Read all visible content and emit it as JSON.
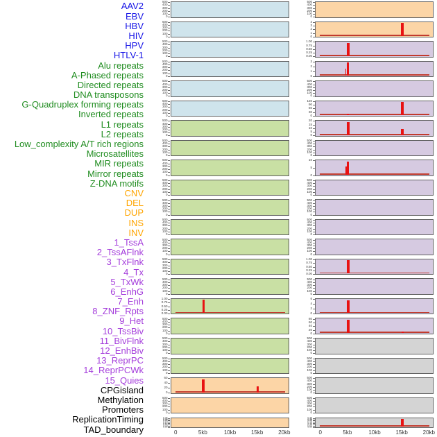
{
  "chart_data": {
    "type": "small_multiple_genomic_tracks",
    "description": "Two columns of genomic signal track panels over a 0-20kb window; red spikes mark feature enrichment at 5kb and 15kb.",
    "x_axis": {
      "tick_labels": [
        "0",
        "5kb",
        "10kb",
        "15kb",
        "20kb"
      ],
      "tick_kb": [
        0,
        5,
        10,
        15,
        20
      ],
      "unit": "kb",
      "range_kb": [
        0,
        20
      ]
    },
    "palette": {
      "panel_fills": {
        "blue": "#CFE4EC",
        "green": "#C9E0A4",
        "orange": "#FCD5A6",
        "purple": "#D6CAE1",
        "gray": "#D4D4D4"
      },
      "label_colors": {
        "blue": "#1412E6",
        "green": "#1F8C1F",
        "orange": "#FFA500",
        "purple": "#A43DDB",
        "black": "#000000"
      },
      "spike_red": "#E81212",
      "baseline_red": "#C23B2E",
      "panel_border": "#5F5F5F",
      "tick_text": "#3A3A3A"
    },
    "columns": [
      {
        "side": "left",
        "rows": [
          {
            "label": "AAV2",
            "label_color": "blue",
            "fill": "blue",
            "y_ticks": [
              "500",
              "400",
              "300",
              "200",
              "100",
              "0"
            ],
            "spikes": [],
            "baseline": false
          },
          {
            "label": "EBV",
            "label_color": "blue",
            "fill": "blue",
            "y_ticks": [
              "500",
              "400",
              "300",
              "200",
              "100",
              "0"
            ],
            "spikes": [],
            "baseline": false
          },
          {
            "label": "HBV",
            "label_color": "blue",
            "fill": "blue",
            "y_ticks": [
              "500",
              "400",
              "300",
              "200",
              "100",
              "0"
            ],
            "spikes": [],
            "baseline": false
          },
          {
            "label": "HIV",
            "label_color": "blue",
            "fill": "blue",
            "y_ticks": [
              "500",
              "400",
              "300",
              "200",
              "100",
              "0"
            ],
            "spikes": [],
            "baseline": false
          },
          {
            "label": "HPV",
            "label_color": "blue",
            "fill": "blue",
            "y_ticks": [
              "500",
              "400",
              "300",
              "200",
              "100",
              "0"
            ],
            "spikes": [],
            "baseline": false
          },
          {
            "label": "HTLV-1",
            "label_color": "blue",
            "fill": "blue",
            "y_ticks": [
              "500",
              "400",
              "300",
              "200",
              "100",
              "0"
            ],
            "spikes": [],
            "baseline": false
          },
          {
            "label": "Alu repeats",
            "label_color": "green",
            "fill": "green",
            "y_ticks": [
              "500",
              "400",
              "300",
              "200",
              "100",
              "0"
            ],
            "spikes": [],
            "baseline": false
          },
          {
            "label": "A-Phased repeats",
            "label_color": "green",
            "fill": "green",
            "y_ticks": [
              "500",
              "400",
              "300",
              "200",
              "100",
              "0"
            ],
            "spikes": [],
            "baseline": false
          },
          {
            "label": "Directed repeats",
            "label_color": "green",
            "fill": "green",
            "y_ticks": [
              "500",
              "400",
              "300",
              "200",
              "100",
              "0"
            ],
            "spikes": [],
            "baseline": false
          },
          {
            "label": "DNA transposons",
            "label_color": "green",
            "fill": "green",
            "y_ticks": [
              "500",
              "400",
              "300",
              "200",
              "100",
              "0"
            ],
            "spikes": [],
            "baseline": false
          },
          {
            "label": "G-Quadruplex forming repeats",
            "label_color": "green",
            "fill": "green",
            "y_ticks": [
              "500",
              "400",
              "300",
              "200",
              "100",
              "0"
            ],
            "spikes": [],
            "baseline": false
          },
          {
            "label": "Inverted repeats",
            "label_color": "green",
            "fill": "green",
            "y_ticks": [
              "500",
              "400",
              "300",
              "200",
              "100",
              "0"
            ],
            "spikes": [],
            "baseline": false
          },
          {
            "label": "L1 repeats",
            "label_color": "green",
            "fill": "green",
            "y_ticks": [
              "500",
              "400",
              "300",
              "200",
              "100",
              "0"
            ],
            "spikes": [],
            "baseline": false
          },
          {
            "label": "L2 repeats",
            "label_color": "green",
            "fill": "green",
            "y_ticks": [
              "500",
              "400",
              "300",
              "200",
              "100",
              "0"
            ],
            "spikes": [],
            "baseline": false
          },
          {
            "label": "Low_complexity A/T rich regions",
            "label_color": "green",
            "fill": "green",
            "y_ticks": [
              "500",
              "400",
              "300",
              "200",
              "100",
              "0"
            ],
            "spikes": [],
            "baseline": false
          },
          {
            "label": "Microsatellites",
            "label_color": "green",
            "fill": "green",
            "y_ticks": [
              "1.00",
              "0.75",
              "0.50",
              "0.25",
              "0.00"
            ],
            "spikes": [
              {
                "x_kb": 5,
                "h": 0.98,
                "w": 2.5
              }
            ],
            "baseline": true
          },
          {
            "label": "MIR repeats",
            "label_color": "green",
            "fill": "green",
            "y_ticks": [
              "500",
              "400",
              "300",
              "200",
              "100",
              "0"
            ],
            "spikes": [],
            "baseline": false
          },
          {
            "label": "Mirror repeats",
            "label_color": "green",
            "fill": "green",
            "y_ticks": [
              "500",
              "400",
              "300",
              "200",
              "100",
              "0"
            ],
            "spikes": [],
            "baseline": false
          },
          {
            "label": "Z-DNA motifs",
            "label_color": "green",
            "fill": "green",
            "y_ticks": [
              "500",
              "400",
              "300",
              "200",
              "100",
              "0"
            ],
            "spikes": [],
            "baseline": false
          },
          {
            "label": "CNV",
            "label_color": "orange",
            "fill": "orange",
            "y_ticks": [
              "60",
              "40",
              "20",
              "0"
            ],
            "spikes": [
              {
                "x_kb": 5,
                "h": 0.95,
                "w": 4
              },
              {
                "x_kb": 15,
                "h": 0.42,
                "w": 3.5
              }
            ],
            "baseline": true
          },
          {
            "label": "DEL",
            "label_color": "orange",
            "fill": "orange",
            "y_ticks": [
              "500",
              "400",
              "300",
              "200",
              "100",
              "0"
            ],
            "spikes": [],
            "baseline": false
          },
          {
            "label": "DUP",
            "label_color": "orange",
            "fill": "orange",
            "y_ticks": [
              "0.35",
              "0.30",
              "0.25",
              "0.20",
              "0.15",
              "0.10",
              "0.05",
              "0.00"
            ],
            "spikes": [],
            "baseline": false
          }
        ]
      },
      {
        "side": "right",
        "rows": [
          {
            "label": "INS",
            "label_color": "orange",
            "fill": "orange",
            "y_ticks": [
              "500",
              "400",
              "300",
              "200",
              "100",
              "0"
            ],
            "spikes": [],
            "baseline": false
          },
          {
            "label": "INV",
            "label_color": "orange",
            "fill": "orange",
            "y_ticks": [
              "4",
              "3",
              "2",
              "1",
              "0"
            ],
            "spikes": [
              {
                "x_kb": 15,
                "h": 0.97,
                "w": 4
              }
            ],
            "baseline": true
          },
          {
            "label": "1_TssA",
            "label_color": "purple",
            "fill": "purple",
            "y_ticks": [
              "1.00",
              "0.75",
              "0.50",
              "0.25",
              "0.00"
            ],
            "spikes": [
              {
                "x_kb": 5,
                "h": 0.97,
                "w": 3.5
              }
            ],
            "baseline": true
          },
          {
            "label": "2_TssAFlnk",
            "label_color": "purple",
            "fill": "purple",
            "y_ticks": [
              "3",
              "2",
              "1",
              "0"
            ],
            "spikes": [
              {
                "x_kb": 4.6,
                "h": 0.5,
                "w": 1.5
              },
              {
                "x_kb": 5,
                "h": 0.97,
                "w": 3
              }
            ],
            "baseline": true
          },
          {
            "label": "3_TxFlnk",
            "label_color": "purple",
            "fill": "purple",
            "y_ticks": [
              "500",
              "400",
              "300",
              "200",
              "100",
              "0"
            ],
            "spikes": [],
            "baseline": false
          },
          {
            "label": "4_Tx",
            "label_color": "purple",
            "fill": "purple",
            "y_ticks": [
              "120",
              "90",
              "60",
              "30",
              "0"
            ],
            "spikes": [
              {
                "x_kb": 5,
                "h": 0.12,
                "w": 3
              },
              {
                "x_kb": 15,
                "h": 0.97,
                "w": 4
              }
            ],
            "baseline": true
          },
          {
            "label": "5_TxWk",
            "label_color": "purple",
            "fill": "purple",
            "y_ticks": [
              "20",
              "15",
              "10",
              "5",
              "0"
            ],
            "spikes": [
              {
                "x_kb": 5,
                "h": 0.97,
                "w": 4.5
              },
              {
                "x_kb": 15,
                "h": 0.45,
                "w": 3.5
              }
            ],
            "baseline": true
          },
          {
            "label": "6_EnhG",
            "label_color": "purple",
            "fill": "purple",
            "y_ticks": [
              "500",
              "400",
              "300",
              "200",
              "100",
              "0"
            ],
            "spikes": [],
            "baseline": false
          },
          {
            "label": "7_Enh",
            "label_color": "purple",
            "fill": "purple",
            "y_ticks": [
              "10",
              "5",
              "0"
            ],
            "spikes": [
              {
                "x_kb": 4.6,
                "h": 0.62,
                "w": 2
              },
              {
                "x_kb": 5,
                "h": 0.97,
                "w": 3
              }
            ],
            "baseline": true
          },
          {
            "label": "8_ZNF_Rpts",
            "label_color": "purple",
            "fill": "purple",
            "y_ticks": [
              "500",
              "400",
              "300",
              "200",
              "100",
              "0"
            ],
            "spikes": [],
            "baseline": false
          },
          {
            "label": "9_Het",
            "label_color": "purple",
            "fill": "purple",
            "y_ticks": [
              "500",
              "400",
              "300",
              "200",
              "100",
              "0"
            ],
            "spikes": [],
            "baseline": false
          },
          {
            "label": "10_TssBiv",
            "label_color": "purple",
            "fill": "purple",
            "y_ticks": [
              "500",
              "400",
              "300",
              "200",
              "100",
              "0"
            ],
            "spikes": [],
            "baseline": false
          },
          {
            "label": "11_BivFlnk",
            "label_color": "purple",
            "fill": "purple",
            "y_ticks": [
              "500",
              "400",
              "300",
              "200",
              "100",
              "0"
            ],
            "spikes": [],
            "baseline": false
          },
          {
            "label": "12_EnhBiv",
            "label_color": "purple",
            "fill": "purple",
            "y_ticks": [
              "1.00",
              "0.75",
              "0.50",
              "0.25",
              "0.00"
            ],
            "spikes": [
              {
                "x_kb": 5,
                "h": 0.97,
                "w": 3.5
              }
            ],
            "baseline": true
          },
          {
            "label": "13_ReprPC",
            "label_color": "purple",
            "fill": "purple",
            "y_ticks": [
              "500",
              "400",
              "300",
              "200",
              "100",
              "0"
            ],
            "spikes": [],
            "baseline": false
          },
          {
            "label": "14_ReprPCWk",
            "label_color": "purple",
            "fill": "purple",
            "y_ticks": [
              "6",
              "4",
              "2",
              "0"
            ],
            "spikes": [
              {
                "x_kb": 5,
                "h": 0.97,
                "w": 3.5
              }
            ],
            "baseline": true
          },
          {
            "label": "15_Quies",
            "label_color": "purple",
            "fill": "purple",
            "y_ticks": [
              "80",
              "60",
              "40",
              "20",
              "0"
            ],
            "spikes": [
              {
                "x_kb": 5,
                "h": 0.97,
                "w": 4
              },
              {
                "x_kb": 15,
                "h": 0.12,
                "w": 3
              }
            ],
            "baseline": true
          },
          {
            "label": "CPGisland",
            "label_color": "black",
            "fill": "gray",
            "y_ticks": [
              "500",
              "400",
              "300",
              "200",
              "100",
              "0"
            ],
            "spikes": [],
            "baseline": false
          },
          {
            "label": "Methylation",
            "label_color": "black",
            "fill": "gray",
            "y_ticks": [
              "500",
              "400",
              "300",
              "200",
              "100",
              "0"
            ],
            "spikes": [],
            "baseline": false
          },
          {
            "label": "Promoters",
            "label_color": "black",
            "fill": "gray",
            "y_ticks": [
              "500",
              "400",
              "300",
              "200",
              "100",
              "0"
            ],
            "spikes": [],
            "baseline": false
          },
          {
            "label": "ReplicationTiming",
            "label_color": "black",
            "fill": "gray",
            "y_ticks": [
              "500",
              "400",
              "300",
              "200",
              "100",
              "0"
            ],
            "spikes": [],
            "baseline": false
          },
          {
            "label": "TAD_boundary",
            "label_color": "black",
            "fill": "gray",
            "y_ticks": [
              "0.35",
              "0.30",
              "0.25",
              "0.20",
              "0.15",
              "0.10",
              "0.05",
              "0.00"
            ],
            "spikes": [
              {
                "x_kb": 15,
                "h": 0.93,
                "w": 4.5
              }
            ],
            "baseline": true
          }
        ]
      }
    ]
  }
}
